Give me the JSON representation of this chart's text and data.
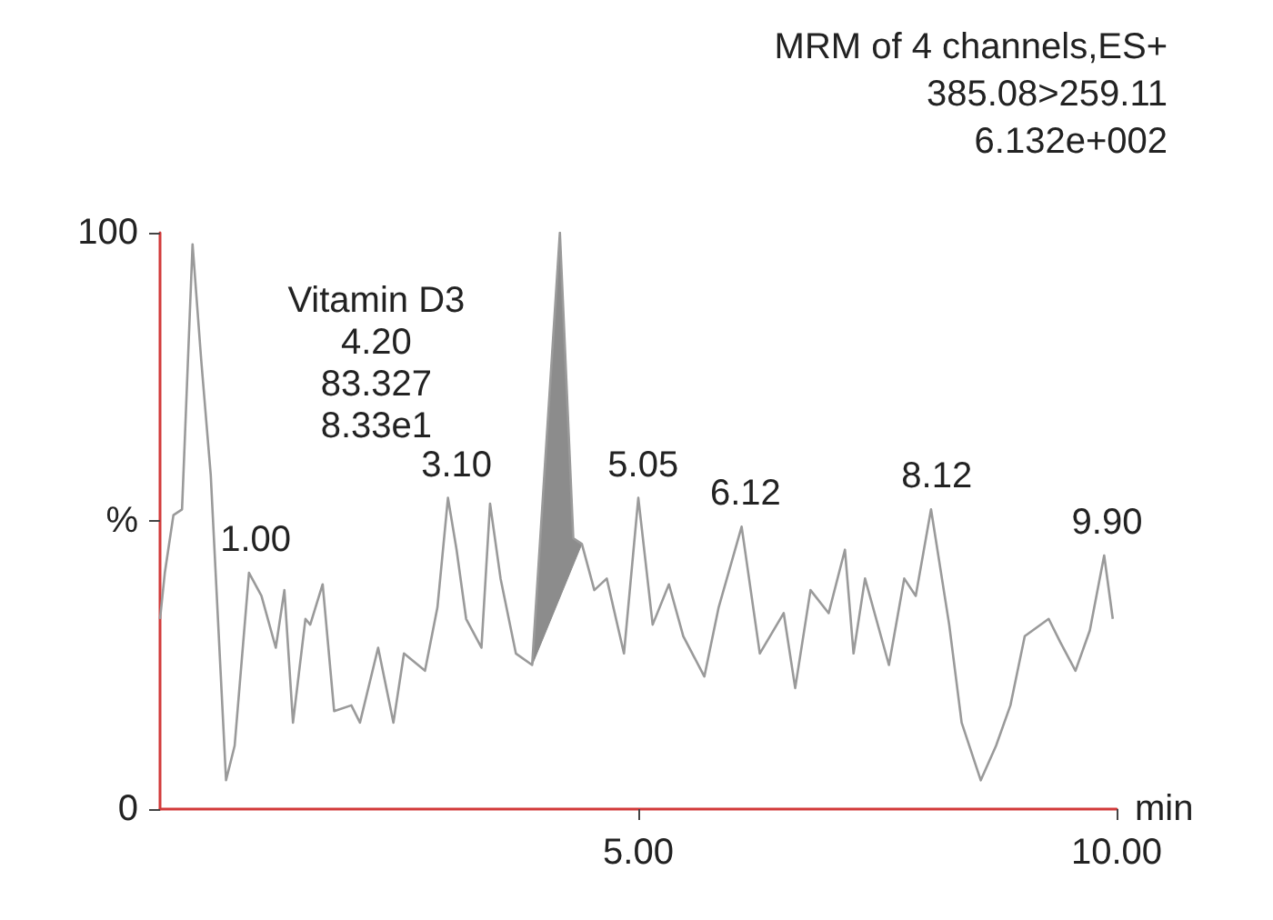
{
  "chart_data": {
    "type": "line",
    "xlabel": "min",
    "xlim": [
      0,
      10
    ],
    "xticks": [
      {
        "value": 5,
        "label": "5.00"
      },
      {
        "value": 10,
        "label": "10.00"
      }
    ],
    "ylim": [
      0,
      100
    ],
    "yticks": [
      0,
      {
        "value": 50,
        "label": "%"
      },
      100
    ],
    "grid": false,
    "marker": "none",
    "line_style": "solid",
    "series": [
      {
        "color": "#9a9a9a",
        "x": [
          0,
          0.05,
          0.14,
          0.23,
          0.34,
          0.43,
          0.53,
          0.69,
          0.78,
          0.93,
          1.06,
          1.21,
          1.3,
          1.39,
          1.52,
          1.57,
          1.7,
          1.82,
          2,
          2.09,
          2.28,
          2.44,
          2.55,
          2.77,
          2.9,
          3.01,
          3.1,
          3.2,
          3.36,
          3.45,
          3.56,
          3.72,
          3.89,
          4.18,
          4.32,
          4.41,
          4.54,
          4.67,
          4.85,
          5,
          5.15,
          5.32,
          5.47,
          5.69,
          5.84,
          6.08,
          6.27,
          6.52,
          6.64,
          6.8,
          6.99,
          7.16,
          7.25,
          7.37,
          7.62,
          7.78,
          7.9,
          8.06,
          8.25,
          8.38,
          8.58,
          8.74,
          8.89,
          9.04,
          9.29,
          9.41,
          9.57,
          9.72,
          9.87,
          9.96
        ],
        "values": [
          33,
          41,
          51,
          52,
          98,
          78,
          58,
          5,
          11,
          41,
          37,
          28,
          38,
          15,
          33,
          32,
          39,
          17,
          18,
          15,
          28,
          15,
          27,
          24,
          35,
          54,
          45,
          33,
          28,
          53,
          40,
          27,
          25,
          100,
          47,
          46,
          38,
          40,
          27,
          54,
          32,
          39,
          30,
          23,
          35,
          49,
          27,
          34,
          21,
          38,
          34,
          45,
          27,
          40,
          25,
          40,
          37,
          52,
          32,
          15,
          5,
          11,
          18,
          30,
          33,
          29,
          24,
          31,
          44,
          33
        ]
      },
      {
        "type": "area",
        "color": "#8c8c8c",
        "x": [
          3.89,
          4.18,
          4.32,
          4.41
        ],
        "values": [
          25,
          100,
          47,
          46
        ]
      }
    ],
    "annotations": [
      "MRM of 4 channels,ES+",
      "385.08>259.11",
      "6.132e+002",
      {
        "text": "Vitamin D3\n4.20\n83.327\n8.33e1",
        "x": 4.2,
        "y": 100
      },
      {
        "text": "1.00",
        "x": 1.0,
        "y": 41
      },
      {
        "text": "3.10",
        "x": 3.1,
        "y": 54
      },
      {
        "text": "5.05",
        "x": 5.05,
        "y": 54
      },
      {
        "text": "6.12",
        "x": 6.12,
        "y": 49
      },
      {
        "text": "8.12",
        "x": 8.12,
        "y": 52
      },
      {
        "text": "9.90",
        "x": 9.9,
        "y": 44
      }
    ]
  }
}
